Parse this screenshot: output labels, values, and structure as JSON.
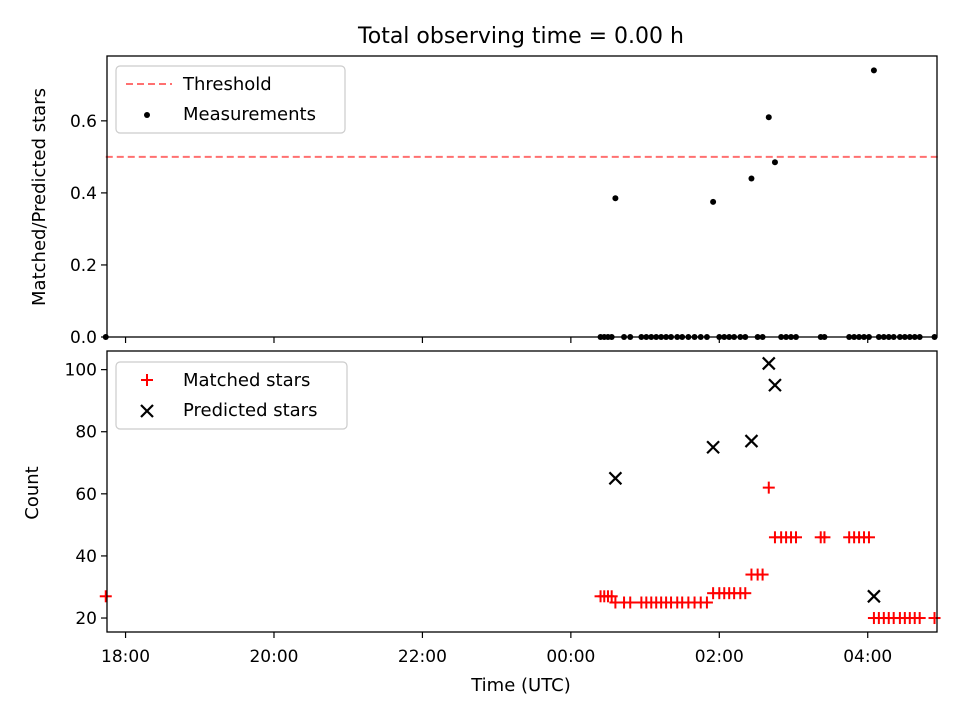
{
  "chart_data": [
    {
      "type": "scatter",
      "title": "Total observing time = 0.00 h",
      "ylabel": "Matched/Predicted stars",
      "xlabel": "",
      "xlim": [
        "17:45",
        "04:56"
      ],
      "ylim": [
        0,
        0.78
      ],
      "yticks": [
        "0.0",
        "0.2",
        "0.4",
        "0.6"
      ],
      "xticks": [
        "18:00",
        "20:00",
        "22:00",
        "00:00",
        "02:00",
        "04:00"
      ],
      "legend": "top-left",
      "threshold": {
        "name": "Threshold",
        "value": 0.5,
        "x": [
          "17:44",
          "04:57"
        ],
        "color": "#ff7070",
        "style": "dashed"
      },
      "series": [
        {
          "name": "Measurements",
          "color": "#000000",
          "marker": "dot",
          "points": [
            [
              "17:44",
              0
            ],
            [
              "00:24",
              0
            ],
            [
              "00:27",
              0
            ],
            [
              "00:30",
              0
            ],
            [
              "00:33",
              0
            ],
            [
              "00:36",
              0.385
            ],
            [
              "00:43",
              0
            ],
            [
              "00:48",
              0
            ],
            [
              "00:57",
              0
            ],
            [
              "01:01",
              0
            ],
            [
              "01:05",
              0
            ],
            [
              "01:09",
              0
            ],
            [
              "01:13",
              0
            ],
            [
              "01:17",
              0
            ],
            [
              "01:21",
              0
            ],
            [
              "01:26",
              0
            ],
            [
              "01:30",
              0
            ],
            [
              "01:35",
              0
            ],
            [
              "01:40",
              0
            ],
            [
              "01:45",
              0
            ],
            [
              "01:50",
              0
            ],
            [
              "01:55",
              0.375
            ],
            [
              "02:00",
              0
            ],
            [
              "02:04",
              0
            ],
            [
              "02:08",
              0
            ],
            [
              "02:12",
              0
            ],
            [
              "02:17",
              0
            ],
            [
              "02:21",
              0
            ],
            [
              "02:26",
              0.44
            ],
            [
              "02:31",
              0
            ],
            [
              "02:35",
              0
            ],
            [
              "02:40",
              0.61
            ],
            [
              "02:45",
              0.485
            ],
            [
              "02:50",
              0
            ],
            [
              "02:54",
              0
            ],
            [
              "02:58",
              0
            ],
            [
              "03:02",
              0
            ],
            [
              "03:22",
              0
            ],
            [
              "03:25",
              0
            ],
            [
              "03:45",
              0
            ],
            [
              "03:49",
              0
            ],
            [
              "03:53",
              0
            ],
            [
              "03:57",
              0
            ],
            [
              "04:01",
              0
            ],
            [
              "04:05",
              0.74
            ],
            [
              "04:09",
              0
            ],
            [
              "04:13",
              0
            ],
            [
              "04:17",
              0
            ],
            [
              "04:21",
              0
            ],
            [
              "04:26",
              0
            ],
            [
              "04:30",
              0
            ],
            [
              "04:34",
              0
            ],
            [
              "04:38",
              0
            ],
            [
              "04:42",
              0
            ],
            [
              "04:54",
              0
            ]
          ]
        }
      ]
    },
    {
      "type": "scatter",
      "title": "",
      "xlabel": "Time (UTC)",
      "ylabel": "Count",
      "xlim": [
        "17:45",
        "04:56"
      ],
      "ylim": [
        15.5,
        106
      ],
      "yticks": [
        "20",
        "40",
        "60",
        "80",
        "100"
      ],
      "xticks": [
        "18:00",
        "20:00",
        "22:00",
        "00:00",
        "02:00",
        "04:00"
      ],
      "legend": "top-left",
      "series": [
        {
          "name": "Matched stars",
          "color": "#ff0000",
          "marker": "plus",
          "points": [
            [
              "17:44",
              27
            ],
            [
              "00:24",
              27
            ],
            [
              "00:27",
              27
            ],
            [
              "00:30",
              27
            ],
            [
              "00:33",
              27
            ],
            [
              "00:36",
              25
            ],
            [
              "00:43",
              25
            ],
            [
              "00:48",
              25
            ],
            [
              "00:57",
              25
            ],
            [
              "01:01",
              25
            ],
            [
              "01:05",
              25
            ],
            [
              "01:09",
              25
            ],
            [
              "01:13",
              25
            ],
            [
              "01:17",
              25
            ],
            [
              "01:21",
              25
            ],
            [
              "01:26",
              25
            ],
            [
              "01:30",
              25
            ],
            [
              "01:35",
              25
            ],
            [
              "01:40",
              25
            ],
            [
              "01:45",
              25
            ],
            [
              "01:50",
              25
            ],
            [
              "01:55",
              28
            ],
            [
              "02:00",
              28
            ],
            [
              "02:04",
              28
            ],
            [
              "02:08",
              28
            ],
            [
              "02:12",
              28
            ],
            [
              "02:17",
              28
            ],
            [
              "02:21",
              28
            ],
            [
              "02:26",
              34
            ],
            [
              "02:31",
              34
            ],
            [
              "02:35",
              34
            ],
            [
              "02:40",
              62
            ],
            [
              "02:45",
              46
            ],
            [
              "02:50",
              46
            ],
            [
              "02:54",
              46
            ],
            [
              "02:58",
              46
            ],
            [
              "03:02",
              46
            ],
            [
              "03:22",
              46
            ],
            [
              "03:25",
              46
            ],
            [
              "03:45",
              46
            ],
            [
              "03:49",
              46
            ],
            [
              "03:53",
              46
            ],
            [
              "03:57",
              46
            ],
            [
              "04:01",
              46
            ],
            [
              "04:05",
              20
            ],
            [
              "04:09",
              20
            ],
            [
              "04:13",
              20
            ],
            [
              "04:17",
              20
            ],
            [
              "04:21",
              20
            ],
            [
              "04:26",
              20
            ],
            [
              "04:30",
              20
            ],
            [
              "04:34",
              20
            ],
            [
              "04:38",
              20
            ],
            [
              "04:42",
              20
            ],
            [
              "04:54",
              20
            ]
          ]
        },
        {
          "name": "Predicted stars",
          "color": "#000000",
          "marker": "x",
          "points": [
            [
              "00:36",
              65
            ],
            [
              "01:55",
              75
            ],
            [
              "02:26",
              77
            ],
            [
              "02:40",
              102
            ],
            [
              "02:45",
              95
            ],
            [
              "04:05",
              27
            ]
          ]
        }
      ]
    }
  ]
}
